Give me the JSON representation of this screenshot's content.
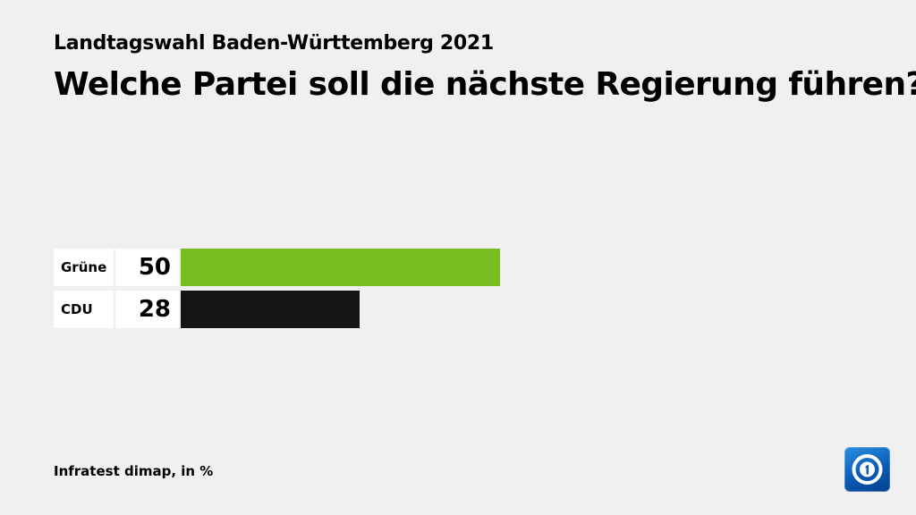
{
  "header": {
    "subtitle": "Landtagswahl Baden-Württemberg 2021",
    "title": "Welche Partei soll die nächste Regierung führen?"
  },
  "footer": {
    "source": "Infratest dimap, in %"
  },
  "logo": {
    "icon": "ard-one-logo-icon"
  },
  "chart_data": {
    "type": "bar",
    "orientation": "horizontal",
    "title": "Welche Partei soll die nächste Regierung führen?",
    "subtitle": "Landtagswahl Baden-Württemberg 2021",
    "categories": [
      "Grüne",
      "CDU"
    ],
    "values": [
      50,
      28
    ],
    "colors": [
      "#78be20",
      "#141414"
    ],
    "unit": "%",
    "xlim": [
      0,
      100
    ],
    "grid": false,
    "legend": "none"
  }
}
